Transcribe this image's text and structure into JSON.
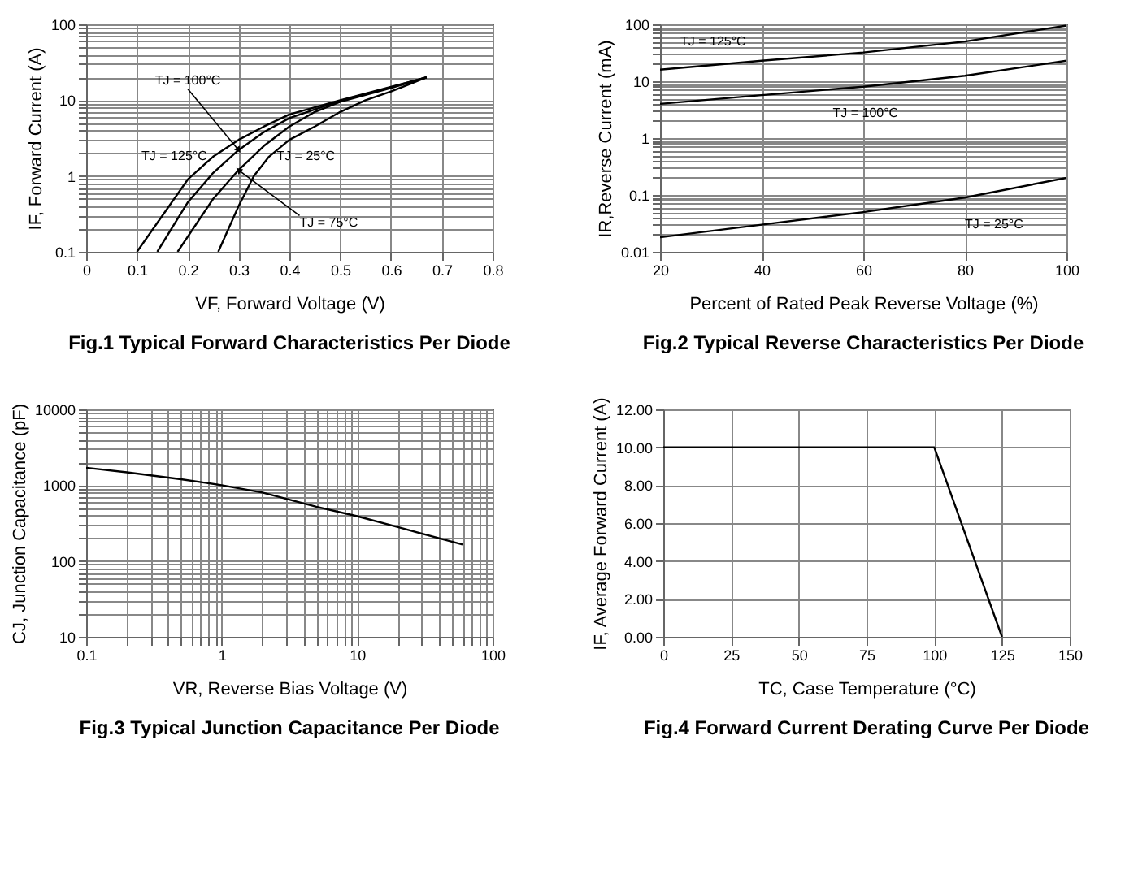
{
  "chart_data": [
    {
      "type": "line",
      "title": "Fig.1 Typical Forward Characteristics Per Diode",
      "xlabel": "VF, Forward Voltage (V)",
      "ylabel": "IF, Forward Current (A)",
      "log": "y",
      "grid": true,
      "legend": false,
      "xlim": [
        0,
        0.8
      ],
      "xticks": [
        0,
        0.1,
        0.2,
        0.3,
        0.4,
        0.5,
        0.6,
        0.7,
        0.8
      ],
      "ylim": [
        0.1,
        100
      ],
      "yticks": [
        0.1,
        {
          "value": 0.2,
          "label": null
        },
        {
          "value": 0.3,
          "label": null
        },
        {
          "value": 0.4,
          "label": null
        },
        {
          "value": 0.5,
          "label": null
        },
        {
          "value": 0.6,
          "label": null
        },
        {
          "value": 0.7,
          "label": null
        },
        {
          "value": 0.8,
          "label": null
        },
        {
          "value": 0.9,
          "label": null
        },
        1,
        {
          "value": 2,
          "label": null
        },
        {
          "value": 3,
          "label": null
        },
        {
          "value": 4,
          "label": null
        },
        {
          "value": 5,
          "label": null
        },
        {
          "value": 6,
          "label": null
        },
        {
          "value": 7,
          "label": null
        },
        {
          "value": 8,
          "label": null
        },
        {
          "value": 9,
          "label": null
        },
        10,
        {
          "value": 20,
          "label": null
        },
        {
          "value": 30,
          "label": null
        },
        {
          "value": 40,
          "label": null
        },
        {
          "value": 50,
          "label": null
        },
        {
          "value": 60,
          "label": null
        },
        {
          "value": 70,
          "label": null
        },
        {
          "value": 80,
          "label": null
        },
        {
          "value": 90,
          "label": null
        },
        100
      ],
      "series": [
        {
          "name": "TJ = 125°C",
          "color": "#000000",
          "x": [
            0.1,
            0.15,
            0.2,
            0.25,
            0.3,
            0.35,
            0.4,
            0.5,
            0.6,
            0.67
          ],
          "values": [
            0.1,
            0.3,
            0.9,
            1.8,
            3,
            4.5,
            6.5,
            10,
            15,
            20
          ]
        },
        {
          "name": "TJ = 100°C",
          "color": "#000000",
          "x": [
            0.14,
            0.2,
            0.25,
            0.3,
            0.35,
            0.4,
            0.5,
            0.6,
            0.67
          ],
          "values": [
            0.1,
            0.45,
            1.1,
            2.2,
            3.8,
            5.8,
            9.8,
            14.8,
            20
          ]
        },
        {
          "name": "TJ = 75°C",
          "color": "#000000",
          "x": [
            0.18,
            0.25,
            0.3,
            0.35,
            0.4,
            0.45,
            0.5,
            0.6,
            0.67
          ],
          "values": [
            0.1,
            0.5,
            1.2,
            2.5,
            4.5,
            7,
            9.5,
            14.5,
            20
          ]
        },
        {
          "name": "TJ = 25°C",
          "color": "#000000",
          "x": [
            0.26,
            0.3,
            0.33,
            0.36,
            0.4,
            0.45,
            0.5,
            0.55,
            0.6,
            0.67
          ],
          "values": [
            0.1,
            0.4,
            1,
            1.8,
            3,
            4.5,
            7,
            10,
            13,
            20
          ]
        }
      ]
    },
    {
      "type": "line",
      "title": "Fig.2 Typical Reverse Characteristics Per Diode",
      "xlabel": "Percent of Rated Peak Reverse Voltage (%)",
      "ylabel": "IR,Reverse Current (mA)",
      "log": "y",
      "grid": true,
      "legend": false,
      "xlim": [
        20,
        100
      ],
      "xticks": [
        20,
        40,
        60,
        80,
        100
      ],
      "ylim": [
        0.01,
        100
      ],
      "yticks": [
        0.01,
        {
          "value": 0.02,
          "label": null
        },
        {
          "value": 0.03,
          "label": null
        },
        {
          "value": 0.04,
          "label": null
        },
        {
          "value": 0.05,
          "label": null
        },
        {
          "value": 0.06,
          "label": null
        },
        {
          "value": 0.07,
          "label": null
        },
        {
          "value": 0.08,
          "label": null
        },
        {
          "value": 0.09,
          "label": null
        },
        0.1,
        {
          "value": 0.2,
          "label": null
        },
        {
          "value": 0.3,
          "label": null
        },
        {
          "value": 0.4,
          "label": null
        },
        {
          "value": 0.5,
          "label": null
        },
        {
          "value": 0.6,
          "label": null
        },
        {
          "value": 0.7,
          "label": null
        },
        {
          "value": 0.8,
          "label": null
        },
        {
          "value": 0.9,
          "label": null
        },
        1,
        {
          "value": 2,
          "label": null
        },
        {
          "value": 3,
          "label": null
        },
        {
          "value": 4,
          "label": null
        },
        {
          "value": 5,
          "label": null
        },
        {
          "value": 6,
          "label": null
        },
        {
          "value": 7,
          "label": null
        },
        {
          "value": 8,
          "label": null
        },
        {
          "value": 9,
          "label": null
        },
        10,
        {
          "value": 20,
          "label": null
        },
        {
          "value": 30,
          "label": null
        },
        {
          "value": 40,
          "label": null
        },
        {
          "value": 50,
          "label": null
        },
        {
          "value": 60,
          "label": null
        },
        {
          "value": 70,
          "label": null
        },
        {
          "value": 80,
          "label": null
        },
        {
          "value": 90,
          "label": null
        },
        100
      ],
      "x": [
        20,
        40,
        60,
        80,
        100
      ],
      "series": [
        {
          "name": "TJ = 125°C",
          "color": "#000000",
          "values": [
            16,
            23,
            32,
            50,
            95
          ]
        },
        {
          "name": "TJ = 100°C",
          "color": "#000000",
          "values": [
            4,
            5.7,
            8,
            12.5,
            23
          ]
        },
        {
          "name": "TJ = 25°C",
          "color": "#000000",
          "values": [
            0.018,
            0.03,
            0.05,
            0.09,
            0.2
          ]
        }
      ]
    },
    {
      "type": "line",
      "title": "Fig.3 Typical Junction Capacitance Per Diode",
      "xlabel": "VR, Reverse Bias Voltage (V)",
      "ylabel": "CJ, Junction Capacitance (pF)",
      "log": "xy",
      "grid": true,
      "legend": false,
      "xlim": [
        0.1,
        100
      ],
      "xticks": [
        0.1,
        {
          "value": 0.2,
          "label": null
        },
        {
          "value": 0.3,
          "label": null
        },
        {
          "value": 0.4,
          "label": null
        },
        {
          "value": 0.5,
          "label": null
        },
        {
          "value": 0.6,
          "label": null
        },
        {
          "value": 0.7,
          "label": null
        },
        {
          "value": 0.8,
          "label": null
        },
        {
          "value": 0.9,
          "label": null
        },
        1,
        {
          "value": 2,
          "label": null
        },
        {
          "value": 3,
          "label": null
        },
        {
          "value": 4,
          "label": null
        },
        {
          "value": 5,
          "label": null
        },
        {
          "value": 6,
          "label": null
        },
        {
          "value": 7,
          "label": null
        },
        {
          "value": 8,
          "label": null
        },
        {
          "value": 9,
          "label": null
        },
        10,
        {
          "value": 20,
          "label": null
        },
        {
          "value": 30,
          "label": null
        },
        {
          "value": 40,
          "label": null
        },
        {
          "value": 50,
          "label": null
        },
        {
          "value": 60,
          "label": null
        },
        {
          "value": 70,
          "label": null
        },
        {
          "value": 80,
          "label": null
        },
        {
          "value": 90,
          "label": null
        },
        100
      ],
      "ylim": [
        10,
        10000
      ],
      "yticks": [
        10,
        {
          "value": 20,
          "label": null
        },
        {
          "value": 30,
          "label": null
        },
        {
          "value": 40,
          "label": null
        },
        {
          "value": 50,
          "label": null
        },
        {
          "value": 60,
          "label": null
        },
        {
          "value": 70,
          "label": null
        },
        {
          "value": 80,
          "label": null
        },
        {
          "value": 90,
          "label": null
        },
        100,
        {
          "value": 200,
          "label": null
        },
        {
          "value": 300,
          "label": null
        },
        {
          "value": 400,
          "label": null
        },
        {
          "value": 500,
          "label": null
        },
        {
          "value": 600,
          "label": null
        },
        {
          "value": 700,
          "label": null
        },
        {
          "value": 800,
          "label": null
        },
        {
          "value": 900,
          "label": null
        },
        1000,
        {
          "value": 2000,
          "label": null
        },
        {
          "value": 3000,
          "label": null
        },
        {
          "value": 4000,
          "label": null
        },
        {
          "value": 5000,
          "label": null
        },
        {
          "value": 6000,
          "label": null
        },
        {
          "value": 7000,
          "label": null
        },
        {
          "value": 8000,
          "label": null
        },
        {
          "value": 9000,
          "label": null
        },
        10000
      ],
      "series": [
        {
          "color": "#000000",
          "x": [
            0.1,
            0.2,
            0.5,
            1,
            2,
            5,
            10,
            20,
            60
          ],
          "values": [
            1700,
            1480,
            1200,
            1000,
            800,
            520,
            390,
            280,
            165
          ]
        }
      ]
    },
    {
      "type": "line",
      "title": "Fig.4 Forward Current Derating Curve Per Diode",
      "xlabel": "TC, Case Temperature  (°C)",
      "ylabel": "IF, Average Forward Current (A)",
      "grid": true,
      "legend": false,
      "xlim": [
        0,
        150
      ],
      "xticks": [
        0,
        25,
        50,
        75,
        100,
        125,
        150
      ],
      "ylim": [
        0,
        12
      ],
      "yticks": [
        {
          "value": 0,
          "label": "0.00"
        },
        {
          "value": 2,
          "label": "2.00"
        },
        {
          "value": 4,
          "label": "4.00"
        },
        {
          "value": 6,
          "label": "6.00"
        },
        {
          "value": 8,
          "label": "8.00"
        },
        {
          "value": 10,
          "label": "10.00"
        },
        {
          "value": 12,
          "label": "12.00"
        }
      ],
      "series": [
        {
          "color": "#000000",
          "x": [
            0,
            100,
            125
          ],
          "values": [
            10,
            10,
            0
          ]
        }
      ]
    }
  ]
}
